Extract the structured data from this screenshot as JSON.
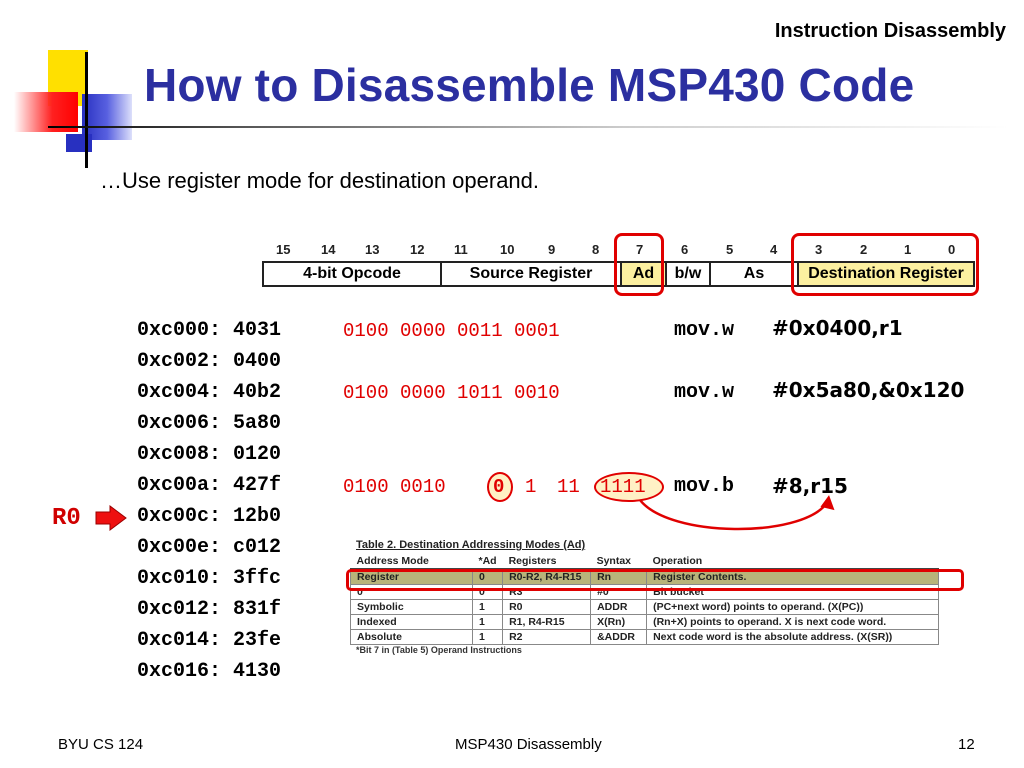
{
  "slide": {
    "top_label": "Instruction Disassembly",
    "title": "How to Disassemble MSP430 Code",
    "subtitle": "…Use register mode for destination operand."
  },
  "format": {
    "bit_numbers": [
      "15",
      "14",
      "13",
      "12",
      "11",
      "10",
      "9",
      "8",
      "7",
      "6",
      "5",
      "4",
      "3",
      "2",
      "1",
      "0"
    ],
    "fields": [
      "4-bit Opcode",
      "Source Register",
      "Ad",
      "b/w",
      "As",
      "Destination Register"
    ]
  },
  "code": {
    "lines": [
      {
        "addr": "0xc000:",
        "word": "4031"
      },
      {
        "addr": "0xc002:",
        "word": "0400"
      },
      {
        "addr": "0xc004:",
        "word": "40b2"
      },
      {
        "addr": "0xc006:",
        "word": "5a80"
      },
      {
        "addr": "0xc008:",
        "word": "0120"
      },
      {
        "addr": "0xc00a:",
        "word": "427f"
      },
      {
        "addr": "0xc00c:",
        "word": "12b0"
      },
      {
        "addr": "0xc00e:",
        "word": "c012"
      },
      {
        "addr": "0xc010:",
        "word": "3ffc"
      },
      {
        "addr": "0xc012:",
        "word": "831f"
      },
      {
        "addr": "0xc014:",
        "word": "23fe"
      },
      {
        "addr": "0xc016:",
        "word": "4130"
      }
    ],
    "decoded": [
      {
        "bits": "0100 0000 0011 0001",
        "mnemonic": "mov.w",
        "operands": "#0x0400,r1"
      },
      {
        "bits": "0100 0000 1011 0010",
        "mnemonic": "mov.w",
        "operands": "#0x5a80,&0x120"
      },
      {
        "bits_a": "0100 0010",
        "bits_ad": "0",
        "bits_bw": "1",
        "bits_as": "11",
        "bits_dst": "1111",
        "mnemonic": "mov.b",
        "operands": "#8,r15"
      }
    ],
    "pc_marker": "R0"
  },
  "table": {
    "title": "Table 2. Destination Addressing Modes (Ad)",
    "headers": [
      "Address Mode",
      "*Ad",
      "Registers",
      "Syntax",
      "Operation"
    ],
    "rows": [
      [
        "Register",
        "0",
        "R0-R2, R4-R15",
        "Rn",
        "Register Contents."
      ],
      [
        "0",
        "0",
        "R3",
        "#0",
        "Bit bucket"
      ],
      [
        "Symbolic",
        "1",
        "R0",
        "ADDR",
        "(PC+next word) points to operand.  (X(PC))"
      ],
      [
        "Indexed",
        "1",
        "R1, R4-R15",
        "X(Rn)",
        "(Rn+X) points to operand.  X is next code word."
      ],
      [
        "Absolute",
        "1",
        "R2",
        "&ADDR",
        "Next code word is the absolute address.  (X(SR))"
      ]
    ],
    "note": "*Bit 7 in (Table 5) Operand Instructions"
  },
  "footer": {
    "left": "BYU CS 124",
    "center": "MSP430 Disassembly",
    "right": "12"
  },
  "colors": {
    "title": "#2b2fa0",
    "highlight_red": "#e00000",
    "field_highlight": "#fcf0a0",
    "table_row_highlight": "#b8b47a"
  }
}
